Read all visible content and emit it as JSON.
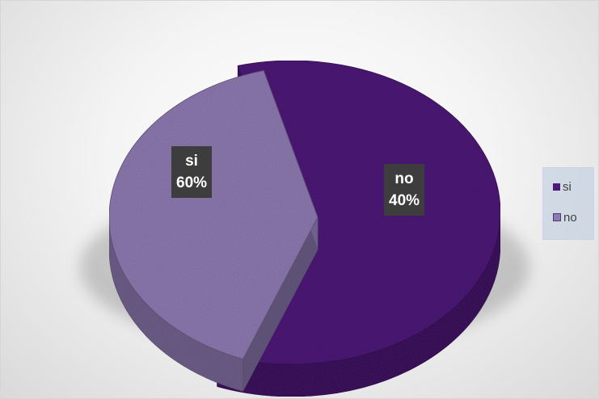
{
  "chart_data": {
    "type": "pie",
    "categories": [
      "si",
      "no"
    ],
    "values": [
      60,
      40
    ],
    "data_labels": [
      {
        "category": "si",
        "percent": "60%"
      },
      {
        "category": "no",
        "percent": "40%"
      }
    ],
    "legend": {
      "position": "right",
      "entries": [
        "si",
        "no"
      ]
    },
    "colors": {
      "si": "#4e1a78",
      "no": "#8f7bb3"
    },
    "style": "3d-exploded"
  }
}
